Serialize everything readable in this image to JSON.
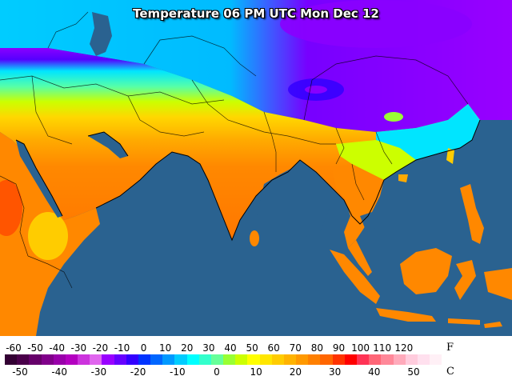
{
  "title": "Temperature 06 PM UTC Mon Dec 12",
  "legend": {
    "fahrenheit_unit": "F",
    "celsius_unit": "C",
    "fahrenheit_ticks": [
      "-60",
      "-50",
      "-40",
      "-30",
      "-20",
      "-10",
      "0",
      "10",
      "20",
      "30",
      "40",
      "50",
      "60",
      "70",
      "80",
      "90",
      "100",
      "110",
      "120"
    ],
    "celsius_ticks": [
      "-50",
      "-40",
      "-30",
      "-20",
      "-10",
      "0",
      "10",
      "20",
      "30",
      "40",
      "50"
    ],
    "colorbar_colors": [
      "#330033",
      "#4a004a",
      "#66006a",
      "#80008a",
      "#9900aa",
      "#b300c0",
      "#cc33dd",
      "#e066ee",
      "#9900ff",
      "#6600ff",
      "#3300ff",
      "#0033ff",
      "#0066ff",
      "#0099ff",
      "#00ccff",
      "#00ffff",
      "#33ffcc",
      "#66ff99",
      "#99ff33",
      "#ccff00",
      "#ffff00",
      "#ffe600",
      "#ffcc00",
      "#ffb300",
      "#ff9900",
      "#ff8000",
      "#ff6600",
      "#ff3300",
      "#ff0000",
      "#ff3355",
      "#ff6677",
      "#ff8899",
      "#ffaabb",
      "#ffccdd",
      "#ffe0ee",
      "#fff0f6"
    ]
  },
  "map": {
    "ocean_color": "#2a6290",
    "land_colors": {
      "very_cold": "#8800ff",
      "cold": "#2200ff",
      "cool": "#00ddff",
      "mild": "#66ff99",
      "warm": "#ccff00",
      "hot": "#ffcc00",
      "very_hot": "#ff8800",
      "hottest": "#ff5500"
    }
  }
}
